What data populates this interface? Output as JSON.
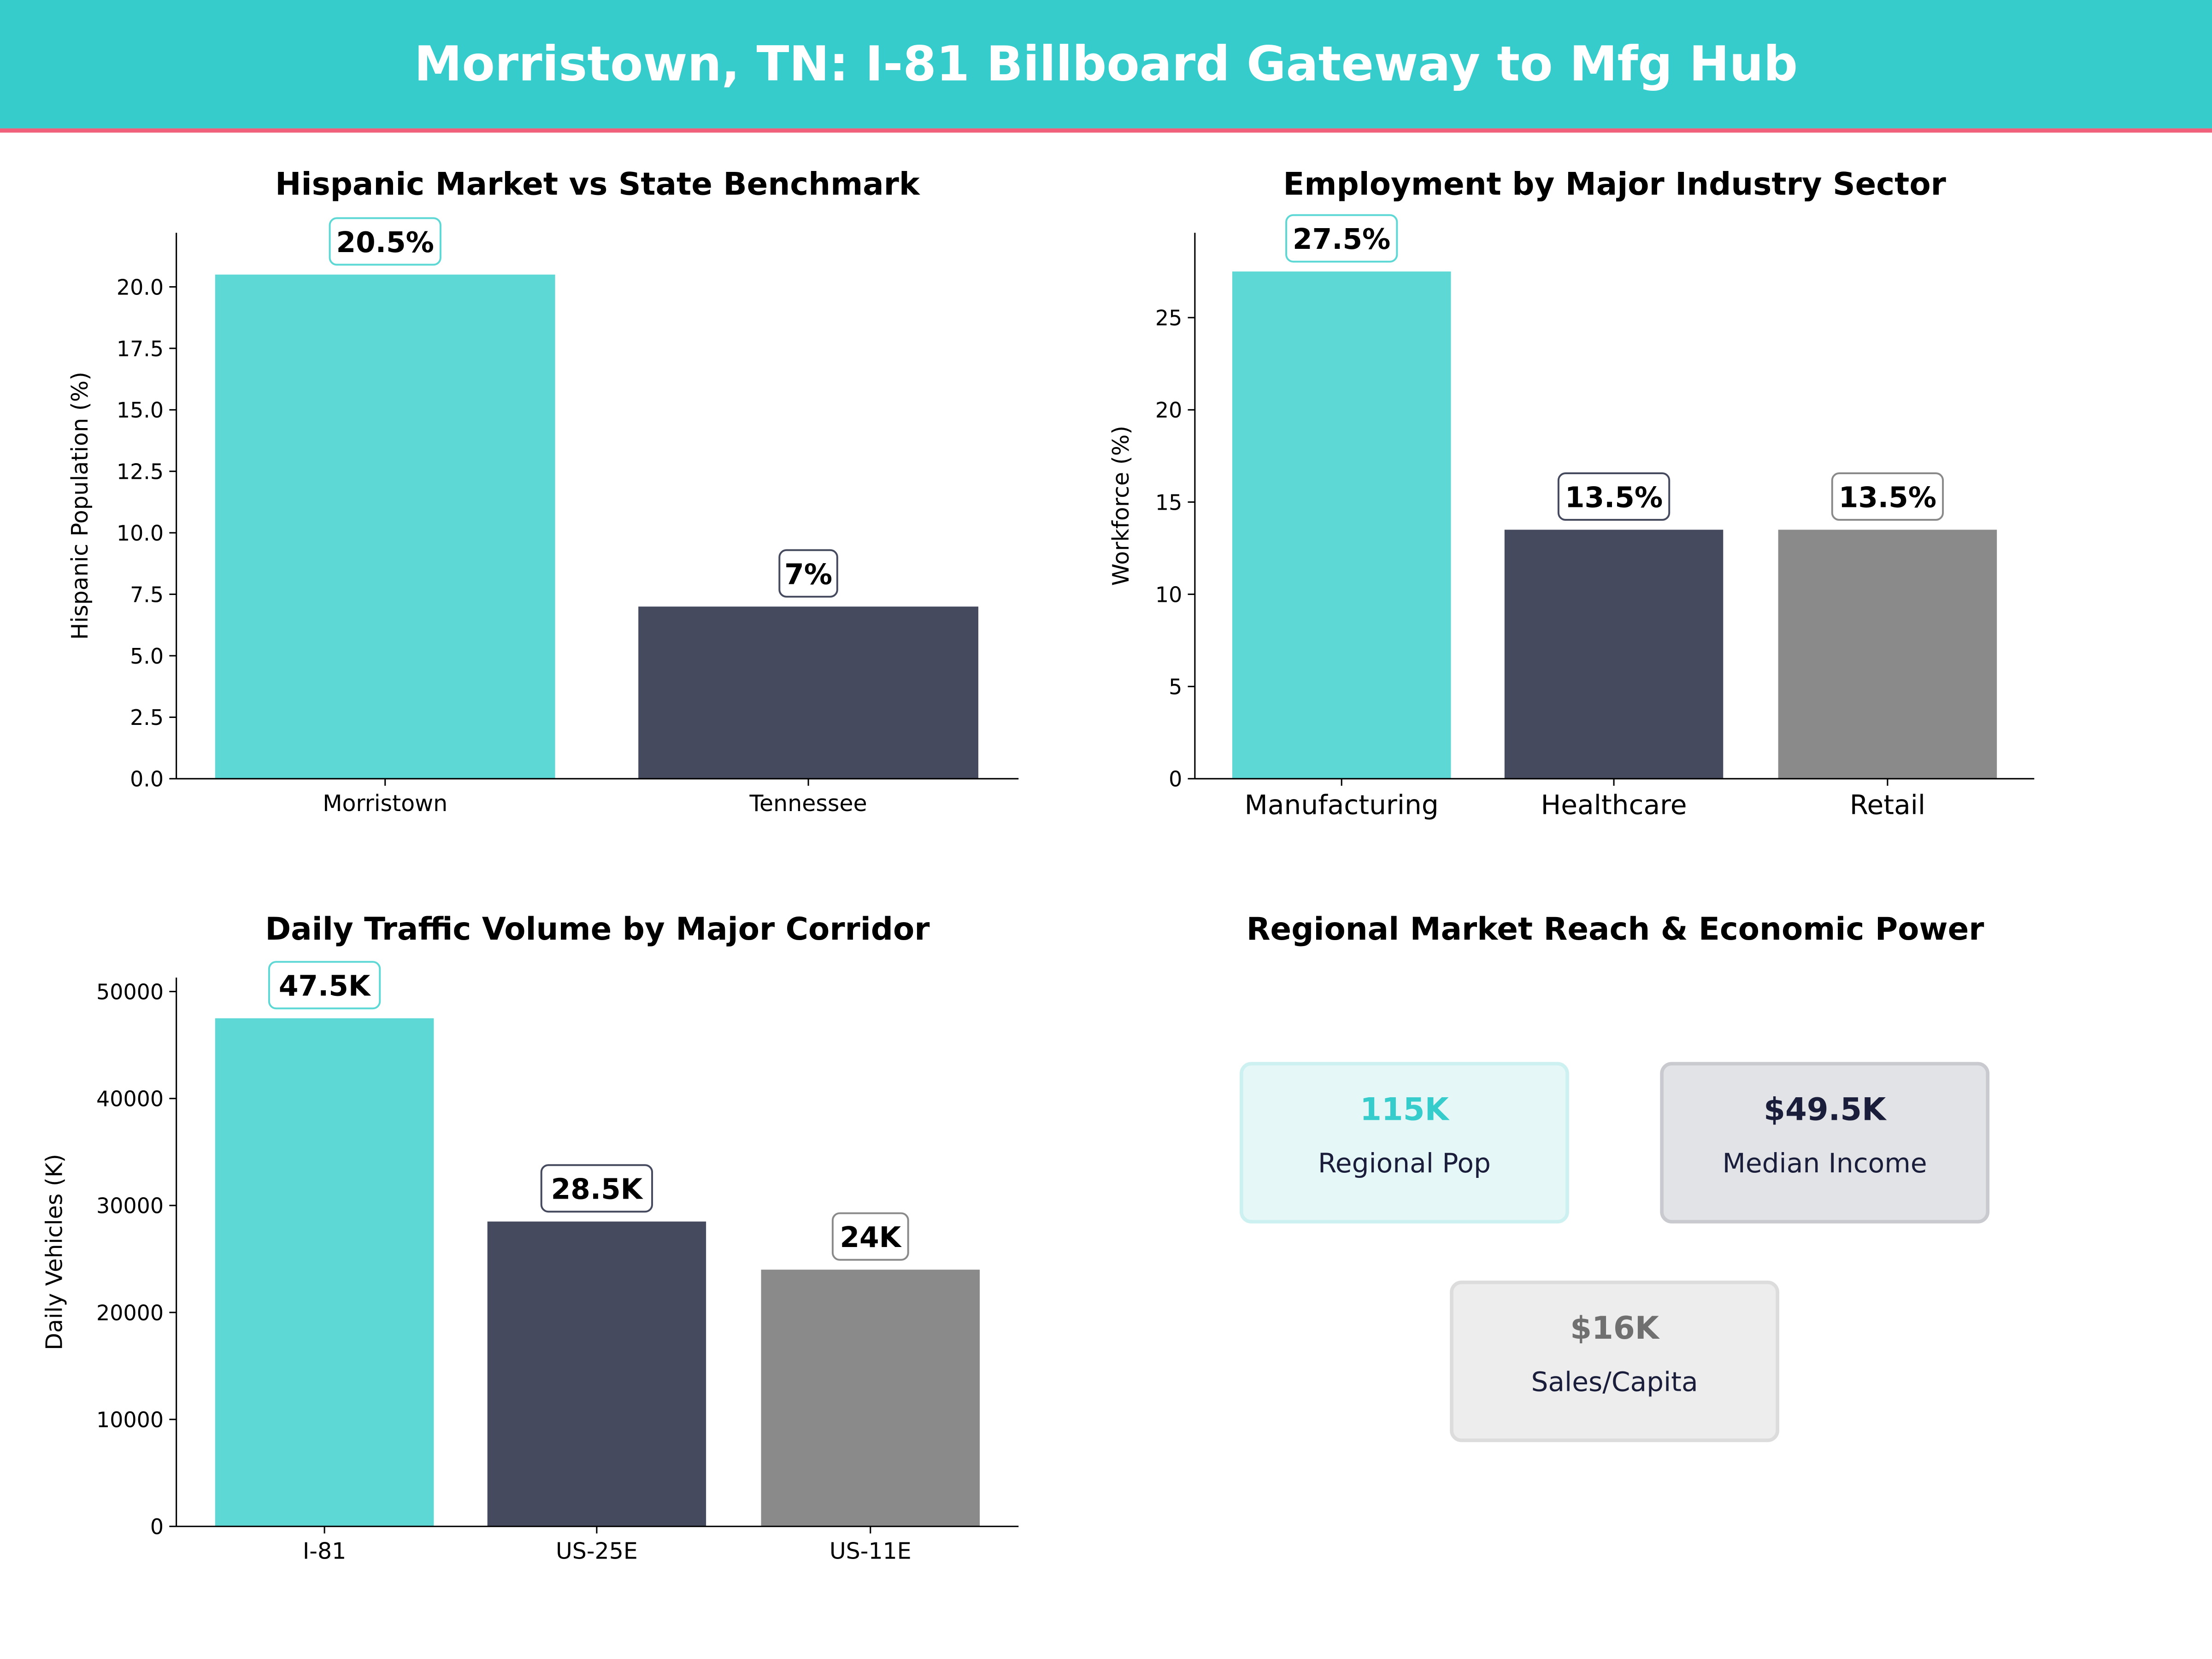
{
  "header": {
    "title": "Morristown, TN: I-81 Billboard Gateway to Mfg Hub",
    "bg_color": "#36CCCC",
    "accent_line_color": "#F0607A"
  },
  "colors": {
    "teal": "#5DD8D5",
    "dark": "#464A5F",
    "grey": "#8A8A8A"
  },
  "chart_data": [
    {
      "type": "bar",
      "title": "Hispanic Market vs State Benchmark",
      "xlabel": "",
      "ylabel": "Hispanic Population (%)",
      "categories": [
        "Morristown",
        "Tennessee"
      ],
      "values": [
        20.5,
        7
      ],
      "data_labels": [
        "20.5%",
        "7%"
      ],
      "ylim": [
        0,
        22.2
      ],
      "yticks": [
        0,
        2.5,
        5,
        7.5,
        10,
        12.5,
        15,
        17.5,
        20
      ],
      "ytick_labels": [
        "0.0",
        "2.5",
        "5.0",
        "7.5",
        "10.0",
        "12.5",
        "15.0",
        "17.5",
        "20.0"
      ],
      "grid": false,
      "bar_colors": [
        "#5DD8D5",
        "#464A5F"
      ]
    },
    {
      "type": "bar",
      "title": "Employment by Major Industry Sector",
      "xlabel": "",
      "ylabel": "Workforce (%)",
      "categories": [
        "Manufacturing",
        "Healthcare",
        "Retail"
      ],
      "values": [
        27.5,
        13.5,
        13.5
      ],
      "data_labels": [
        "27.5%",
        "13.5%",
        "13.5%"
      ],
      "ylim": [
        0,
        29.6
      ],
      "yticks": [
        0,
        5,
        10,
        15,
        20,
        25
      ],
      "ytick_labels": [
        "0",
        "5",
        "10",
        "15",
        "20",
        "25"
      ],
      "grid": false,
      "bar_colors": [
        "#5DD8D5",
        "#464A5F",
        "#8A8A8A"
      ]
    },
    {
      "type": "bar",
      "title": "Daily Traffic Volume by Major Corridor",
      "xlabel": "",
      "ylabel": "Daily Vehicles (K)",
      "categories": [
        "I-81",
        "US-25E",
        "US-11E"
      ],
      "values": [
        47500,
        28500,
        24000
      ],
      "data_labels": [
        "47.5K",
        "28.5K",
        "24K"
      ],
      "ylim": [
        0,
        51300
      ],
      "yticks": [
        0,
        10000,
        20000,
        30000,
        40000,
        50000
      ],
      "ytick_labels": [
        "0",
        "10000",
        "20000",
        "30000",
        "40000",
        "50000"
      ],
      "grid": false,
      "bar_colors": [
        "#5DD8D5",
        "#464A5F",
        "#8A8A8A"
      ]
    }
  ],
  "market_panel": {
    "title": "Regional Market Reach & Economic Power",
    "cards": [
      {
        "value": "115K",
        "label": "Regional Pop",
        "value_color": "#36CCCC",
        "bg": "#E6F7F7",
        "border": "#CDF0F0"
      },
      {
        "value": "$49.5K",
        "label": "Median Income",
        "value_color": "#1A1E3A",
        "bg": "#E2E3E7",
        "border": "#C9CACF"
      },
      {
        "value": "$16K",
        "label": "Sales/Capita",
        "value_color": "#707070",
        "bg": "#EDEDED",
        "border": "#DCDCDC"
      }
    ]
  }
}
